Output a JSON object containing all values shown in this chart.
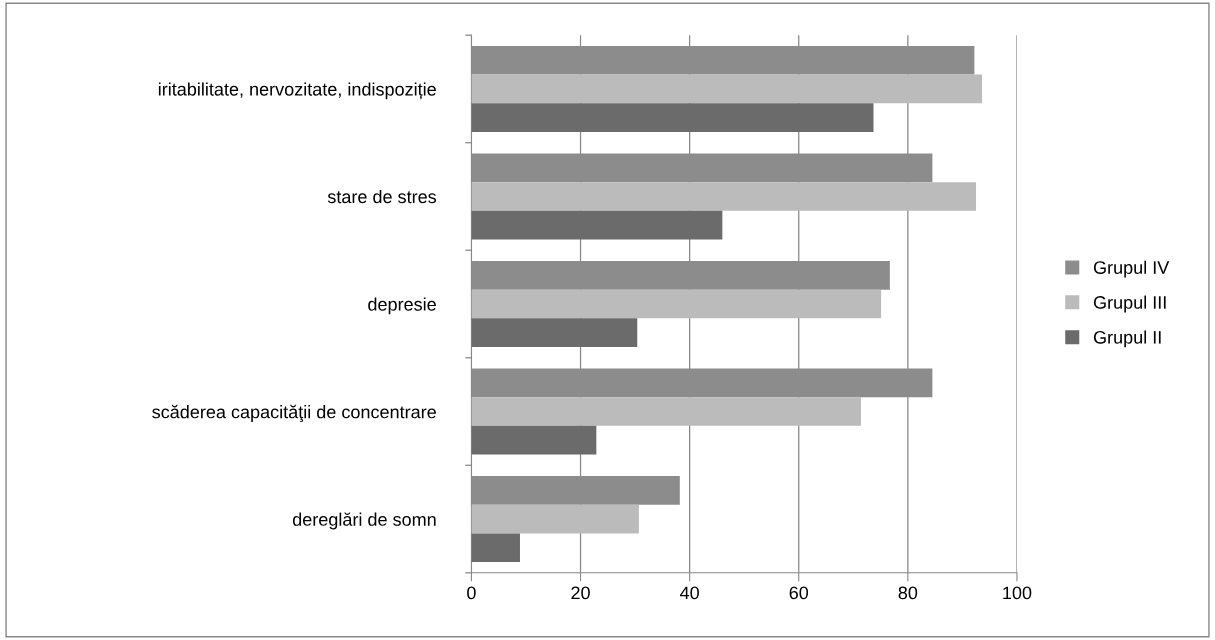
{
  "chart_data": {
    "type": "bar",
    "orientation": "horizontal",
    "categories": [
      "iritabilitate, nervozitate, indispoziție",
      "stare de stres",
      "depresie",
      "scăderea capacităţii de concentrare",
      "dereglări de somn"
    ],
    "series": [
      {
        "name": "Grupul IV",
        "color": "#8c8c8c",
        "values": [
          92.2,
          84.5,
          76.7,
          84.5,
          38.2
        ]
      },
      {
        "name": "Grupul III",
        "color": "#bbbbbb",
        "values": [
          93.6,
          92.5,
          75.1,
          71.4,
          30.7
        ]
      },
      {
        "name": "Grupul II",
        "color": "#6b6b6b",
        "values": [
          73.7,
          46.0,
          30.4,
          22.9,
          8.9
        ]
      }
    ],
    "xlim": [
      0,
      100
    ],
    "xticks": [
      0,
      20,
      40,
      60,
      80,
      100
    ],
    "grid": "x",
    "legend": "right"
  }
}
